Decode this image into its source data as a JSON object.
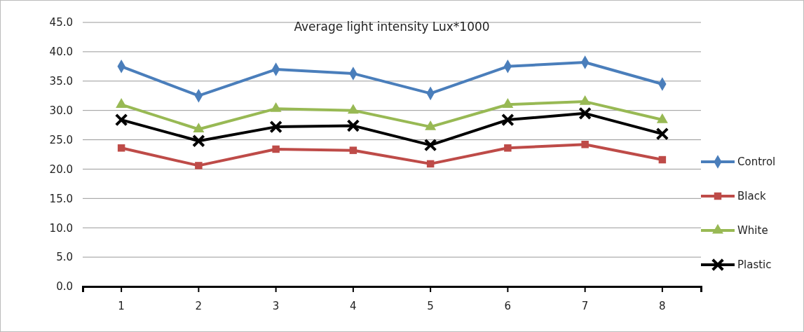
{
  "chart_data": {
    "type": "line",
    "title": "Average light intensity Lux*1000",
    "categories": [
      "1",
      "2",
      "3",
      "4",
      "5",
      "6",
      "7",
      "8"
    ],
    "series": [
      {
        "name": "Control",
        "color": "#4a7ebb",
        "marker": "diamond",
        "values": [
          37.5,
          32.5,
          37.0,
          36.3,
          32.9,
          37.5,
          38.2,
          34.5
        ]
      },
      {
        "name": "Black",
        "color": "#be4b48",
        "marker": "square",
        "values": [
          23.6,
          20.6,
          23.4,
          23.2,
          20.9,
          23.6,
          24.2,
          21.6
        ]
      },
      {
        "name": "White",
        "color": "#98b954",
        "marker": "triangle",
        "values": [
          31.0,
          26.8,
          30.3,
          30.0,
          27.2,
          31.0,
          31.5,
          28.4
        ]
      },
      {
        "name": "Plastic",
        "color": "#000000",
        "marker": "cross",
        "values": [
          28.4,
          24.8,
          27.2,
          27.4,
          24.1,
          28.4,
          29.5,
          26.0
        ]
      }
    ],
    "ylim": [
      0,
      45
    ],
    "yticks": [
      {
        "value": 0,
        "label": "0.0"
      },
      {
        "value": 5,
        "label": "5.0"
      },
      {
        "value": 10,
        "label": "10.0"
      },
      {
        "value": 15,
        "label": "15.0"
      },
      {
        "value": 20,
        "label": "20.0"
      },
      {
        "value": 25,
        "label": "25.0"
      },
      {
        "value": 30,
        "label": "30.0"
      },
      {
        "value": 35,
        "label": "35.0"
      },
      {
        "value": 40,
        "label": "40.0"
      },
      {
        "value": 45,
        "label": "45.0"
      }
    ],
    "grid": "y",
    "legend": "right",
    "line_style": "solid"
  }
}
